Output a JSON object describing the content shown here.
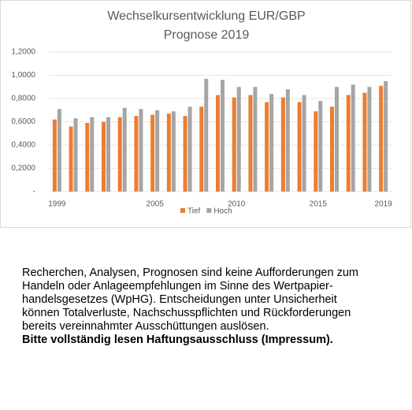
{
  "chart_data": {
    "type": "bar",
    "title": [
      "Wechselkursentwicklung EUR/GBP",
      "Prognose 2019"
    ],
    "categories": [
      "1999",
      null,
      null,
      null,
      null,
      null,
      "2005",
      null,
      null,
      null,
      null,
      "2010",
      null,
      null,
      null,
      null,
      "2015",
      null,
      null,
      null,
      "2019"
    ],
    "series": [
      {
        "name": "Tief",
        "color": "#ed7d31",
        "values": [
          0.62,
          0.56,
          0.59,
          0.6,
          0.64,
          0.65,
          0.66,
          0.67,
          0.65,
          0.73,
          0.83,
          0.81,
          0.83,
          0.77,
          0.81,
          0.77,
          0.69,
          0.73,
          0.83,
          0.85,
          0.91
        ]
      },
      {
        "name": "Hoch",
        "color": "#a5a5a5",
        "values": [
          0.71,
          0.63,
          0.64,
          0.64,
          0.72,
          0.71,
          0.7,
          0.69,
          0.73,
          0.97,
          0.96,
          0.9,
          0.9,
          0.84,
          0.88,
          0.83,
          0.78,
          0.9,
          0.92,
          0.9,
          0.95
        ]
      }
    ],
    "ylim": [
      0,
      1.2
    ],
    "yticks": [
      {
        "value": 0,
        "label": "-"
      },
      {
        "value": 0.2,
        "label": "0,2000"
      },
      {
        "value": 0.4,
        "label": "0,4000"
      },
      {
        "value": 0.6,
        "label": "0,6000"
      },
      {
        "value": 0.8,
        "label": "0,8000"
      },
      {
        "value": 1.0,
        "label": "1,0000"
      },
      {
        "value": 1.2,
        "label": "1,2000"
      }
    ],
    "grid": true
  },
  "disclaimer": {
    "lines": [
      "Recherchen, Analysen, Prognosen sind keine Aufforderungen zum",
      "Handeln oder Anlageempfehlungen im Sinne des Wertpapier-",
      "handelsgesetzes (WpHG). Entscheidungen unter Unsicherheit",
      "können Totalverluste, Nachschusspflichten und Rückforderungen",
      "bereits vereinnahmter Ausschüttungen auslösen."
    ],
    "bold": "Bitte vollständig lesen Haftungsausschluss (Impressum)."
  }
}
